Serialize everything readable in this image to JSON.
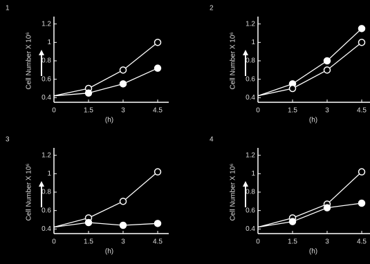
{
  "chart_data": [
    {
      "type": "line",
      "title": "1",
      "y_label": "Cell Number X 10⁶",
      "x_label": "(h)",
      "x": [
        0,
        1.5,
        3,
        4.5
      ],
      "xlim": [
        0,
        4.8
      ],
      "xticks": [
        0,
        1.5,
        3,
        4.5
      ],
      "ylim": [
        0.35,
        1.25
      ],
      "yticks": [
        0.4,
        0.6,
        0.8,
        1,
        1.2
      ],
      "series": [
        {
          "marker": "open",
          "color": "#ffffff",
          "values": [
            0.42,
            0.5,
            0.7,
            1.0
          ]
        },
        {
          "marker": "filled",
          "color": "#ffffff",
          "values": [
            0.42,
            0.45,
            0.55,
            0.72
          ]
        }
      ]
    },
    {
      "type": "line",
      "title": "2",
      "y_label": "Cell Number X 10⁶",
      "x_label": "(h)",
      "x": [
        0,
        1.5,
        3,
        4.5
      ],
      "xlim": [
        0,
        4.8
      ],
      "xticks": [
        0,
        1.5,
        3,
        4.5
      ],
      "ylim": [
        0.35,
        1.25
      ],
      "yticks": [
        0.4,
        0.6,
        0.8,
        1,
        1.2
      ],
      "series": [
        {
          "marker": "filled",
          "color": "#ffffff",
          "values": [
            0.42,
            0.55,
            0.8,
            1.15
          ]
        },
        {
          "marker": "open",
          "color": "#ffffff",
          "values": [
            0.42,
            0.5,
            0.7,
            1.0
          ]
        }
      ]
    },
    {
      "type": "line",
      "title": "3",
      "y_label": "Cell Number X 10⁶",
      "x_label": "(h)",
      "x": [
        0,
        1.5,
        3,
        4.5
      ],
      "xlim": [
        0,
        4.8
      ],
      "xticks": [
        0,
        1.5,
        3,
        4.5
      ],
      "ylim": [
        0.35,
        1.25
      ],
      "yticks": [
        0.4,
        0.6,
        0.8,
        1,
        1.2
      ],
      "series": [
        {
          "marker": "open",
          "color": "#ffffff",
          "values": [
            0.42,
            0.52,
            0.7,
            1.02
          ]
        },
        {
          "marker": "filled",
          "color": "#ffffff",
          "values": [
            0.42,
            0.47,
            0.44,
            0.46
          ]
        }
      ]
    },
    {
      "type": "line",
      "title": "4",
      "y_label": "Cell Number X 10⁶",
      "x_label": "(h)",
      "x": [
        0,
        1.5,
        3,
        4.5
      ],
      "xlim": [
        0,
        4.8
      ],
      "xticks": [
        0,
        1.5,
        3,
        4.5
      ],
      "ylim": [
        0.35,
        1.25
      ],
      "yticks": [
        0.4,
        0.6,
        0.8,
        1,
        1.2
      ],
      "series": [
        {
          "marker": "open",
          "color": "#ffffff",
          "values": [
            0.42,
            0.52,
            0.67,
            1.02
          ]
        },
        {
          "marker": "filled",
          "color": "#ffffff",
          "values": [
            0.42,
            0.48,
            0.63,
            0.68
          ]
        }
      ]
    }
  ]
}
